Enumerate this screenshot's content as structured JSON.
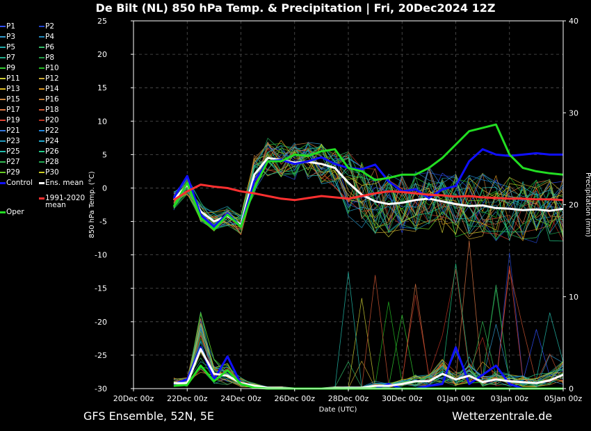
{
  "header": {
    "title": "De Bilt  (NL)  850 hPa Temp. & Precipitation | Fri, 20Dec2024 12Z"
  },
  "footer": {
    "left": "GFS Ensemble, 52N, 5E",
    "right": "Wetterzentrale.de"
  },
  "legend": {
    "items": [
      {
        "label": "P1",
        "color": "#3050ff"
      },
      {
        "label": "P2",
        "color": "#2244cc"
      },
      {
        "label": "P3",
        "color": "#3399cc"
      },
      {
        "label": "P4",
        "color": "#2288bb"
      },
      {
        "label": "P5",
        "color": "#22aaaa"
      },
      {
        "label": "P6",
        "color": "#33bb66"
      },
      {
        "label": "P7",
        "color": "#22aa88"
      },
      {
        "label": "P8",
        "color": "#229944"
      },
      {
        "label": "P9",
        "color": "#33cc33"
      },
      {
        "label": "P10",
        "color": "#22bb22"
      },
      {
        "label": "P11",
        "color": "#cccc33"
      },
      {
        "label": "P12",
        "color": "#ccaa33"
      },
      {
        "label": "P13",
        "color": "#ddbb22"
      },
      {
        "label": "P14",
        "color": "#dd9922"
      },
      {
        "label": "P15",
        "color": "#cc8844"
      },
      {
        "label": "P16",
        "color": "#bb7733"
      },
      {
        "label": "P17",
        "color": "#dd7744"
      },
      {
        "label": "P18",
        "color": "#cc5533"
      },
      {
        "label": "P19",
        "color": "#dd4433"
      },
      {
        "label": "P20",
        "color": "#bb3322"
      },
      {
        "label": "P21",
        "color": "#3377dd"
      },
      {
        "label": "P22",
        "color": "#2288dd"
      },
      {
        "label": "P23",
        "color": "#2299bb"
      },
      {
        "label": "P24",
        "color": "#22aacc"
      },
      {
        "label": "P25",
        "color": "#22bbaa"
      },
      {
        "label": "P26",
        "color": "#22cc88"
      },
      {
        "label": "P27",
        "color": "#33bb55"
      },
      {
        "label": "P28",
        "color": "#22aa55"
      },
      {
        "label": "P29",
        "color": "#66cc22"
      },
      {
        "label": "P30",
        "color": "#cccc22"
      }
    ],
    "control": {
      "label": "Control",
      "color": "#1010ff"
    },
    "ens_mean": {
      "label": "Ens. mean",
      "color": "#ffffff"
    },
    "climate": {
      "label": "1991-2020",
      "label2": "mean",
      "color": "#ff3030"
    },
    "oper": {
      "label": "Oper",
      "color": "#22dd22"
    }
  },
  "chart_data": {
    "type": "line",
    "x_axis": {
      "label": "Date (UTC)",
      "start": "2024-12-20T00:00Z",
      "end": "2025-01-05T00:00Z",
      "ticks": [
        "20Dec 00z",
        "22Dec 00z",
        "24Dec 00z",
        "26Dec 00z",
        "28Dec 00z",
        "30Dec 00z",
        "01Jan 00z",
        "03Jan 00z",
        "05Jan 00z"
      ]
    },
    "y_left": {
      "label": "850 hPa Temp. (°C)",
      "ylim": [
        -30,
        25
      ],
      "ticks": [
        "25",
        "20",
        "15",
        "10",
        "5",
        "0",
        "-5",
        "-10",
        "-15",
        "-20",
        "-25",
        "-30"
      ]
    },
    "y_right": {
      "label": "Precipitation (mm)",
      "ylim": [
        0,
        40
      ],
      "ticks": [
        "40",
        "30",
        "20",
        "10",
        "0"
      ]
    },
    "grid": true,
    "x_days": [
      1.5,
      2.0,
      2.5,
      3.0,
      3.5,
      4.0,
      4.5,
      5.0,
      5.5,
      6.0,
      6.5,
      7.0,
      7.5,
      8.0,
      8.5,
      9.0,
      9.5,
      10.0,
      10.5,
      11.0,
      11.5,
      12.0,
      12.5,
      13.0,
      13.5,
      14.0,
      14.5,
      15.0,
      15.5,
      16.0
    ],
    "series": [
      {
        "name": "Ens. mean",
        "kind": "temp",
        "color": "#ffffff",
        "width": 3,
        "values": [
          -1.8,
          0.5,
          -3.5,
          -5.0,
          -4.2,
          -5.5,
          2.0,
          4.5,
          4.2,
          3.8,
          3.9,
          3.6,
          3.0,
          0.8,
          -1.0,
          -2.0,
          -2.4,
          -2.2,
          -1.8,
          -1.6,
          -2.0,
          -2.4,
          -2.7,
          -2.6,
          -3.0,
          -3.1,
          -3.3,
          -3.2,
          -3.4,
          -3.1
        ]
      },
      {
        "name": "Control",
        "kind": "temp",
        "color": "#1010ff",
        "width": 3,
        "values": [
          -1.5,
          1.8,
          -4.0,
          -5.8,
          -3.8,
          -5.8,
          1.0,
          4.0,
          4.2,
          3.6,
          4.0,
          4.6,
          3.6,
          3.0,
          2.8,
          3.5,
          1.0,
          -0.5,
          -0.2,
          -1.5,
          -0.2,
          0.3,
          4.0,
          5.8,
          5.0,
          4.8,
          5.0,
          5.2,
          5.0,
          5.0
        ]
      },
      {
        "name": "Oper",
        "kind": "temp",
        "color": "#22dd22",
        "width": 3,
        "values": [
          -2.8,
          0.8,
          -4.5,
          -6.2,
          -4.0,
          -5.8,
          0.0,
          4.0,
          4.0,
          5.0,
          4.8,
          5.5,
          5.8,
          3.0,
          2.5,
          1.2,
          1.5,
          2.0,
          2.0,
          3.0,
          4.5,
          6.5,
          8.5,
          9.0,
          9.5,
          5.0,
          3.0,
          2.5,
          2.2,
          2.0
        ]
      },
      {
        "name": "1991-2020 mean",
        "kind": "temp",
        "color": "#ff3030",
        "width": 3,
        "values": [
          -1.8,
          -0.5,
          0.5,
          0.2,
          0.0,
          -0.5,
          -0.8,
          -1.2,
          -1.6,
          -1.8,
          -1.5,
          -1.2,
          -1.4,
          -1.6,
          -1.2,
          -0.8,
          -0.5,
          -0.6,
          -0.8,
          -1.0,
          -1.1,
          -1.3,
          -1.2,
          -1.4,
          -1.5,
          -1.6,
          -1.6,
          -1.7,
          -1.7,
          -1.8
        ]
      },
      {
        "name": "Control precip",
        "kind": "precip",
        "color": "#1010ff",
        "width": 3,
        "values": [
          0.5,
          1.0,
          4.5,
          1.0,
          3.5,
          0.5,
          0.2,
          0.0,
          0.0,
          0.0,
          0.0,
          0.0,
          0.0,
          0.0,
          0.0,
          0.0,
          0.5,
          0.0,
          0.0,
          0.3,
          0.5,
          4.5,
          0.5,
          1.5,
          2.5,
          0.5,
          0.0,
          0.0,
          0.0,
          0.0
        ]
      },
      {
        "name": "Mean precip",
        "kind": "precip",
        "color": "#ffffff",
        "width": 3,
        "values": [
          0.6,
          0.6,
          4.3,
          1.6,
          1.4,
          0.6,
          0.3,
          0.1,
          0.1,
          0.0,
          0.0,
          0.0,
          0.1,
          0.1,
          0.1,
          0.3,
          0.3,
          0.5,
          0.8,
          0.8,
          1.6,
          1.0,
          1.4,
          0.7,
          1.0,
          0.8,
          0.7,
          0.6,
          0.9,
          1.5
        ]
      },
      {
        "name": "Oper precip",
        "kind": "precip",
        "color": "#22dd22",
        "width": 3,
        "values": [
          0.3,
          0.4,
          2.5,
          0.8,
          2.0,
          0.5,
          0.1,
          0.0,
          0.0,
          0.0,
          0.0,
          0.0,
          0.0,
          0.0,
          0.0,
          0.0,
          0.0,
          0.0,
          0.0,
          0.0,
          0.0,
          0.0,
          0.0,
          0.0,
          0.0,
          0.0,
          0.0,
          0.0,
          0.0,
          0.0
        ]
      }
    ]
  }
}
